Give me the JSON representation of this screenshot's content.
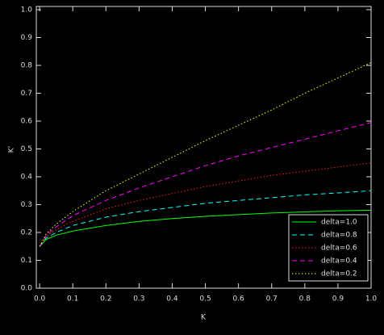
{
  "chart_data": {
    "type": "line",
    "x_label": "K",
    "y_label": "K'",
    "x": [
      0,
      0.02,
      0.05,
      0.1,
      0.2,
      0.3,
      0.4,
      0.5,
      0.6,
      0.7,
      0.8,
      0.9,
      1.0
    ],
    "series": [
      {
        "name": "delta=1.0",
        "color": "#00ff00",
        "dash": "solid",
        "values": [
          0.15,
          0.175,
          0.19,
          0.205,
          0.225,
          0.24,
          0.25,
          0.258,
          0.264,
          0.27,
          0.274,
          0.278,
          0.28
        ]
      },
      {
        "name": "delta=0.8",
        "color": "#00ffff",
        "dash": "dashed",
        "values": [
          0.15,
          0.18,
          0.2,
          0.225,
          0.255,
          0.275,
          0.29,
          0.305,
          0.315,
          0.325,
          0.335,
          0.342,
          0.35
        ]
      },
      {
        "name": "delta=0.6",
        "color": "#ff2020",
        "dash": "dotted",
        "values": [
          0.15,
          0.185,
          0.21,
          0.24,
          0.285,
          0.315,
          0.34,
          0.365,
          0.385,
          0.405,
          0.42,
          0.435,
          0.45
        ]
      },
      {
        "name": "delta=0.4",
        "color": "#ff00ff",
        "dash": "dashed",
        "values": [
          0.15,
          0.19,
          0.22,
          0.26,
          0.315,
          0.36,
          0.4,
          0.44,
          0.475,
          0.505,
          0.535,
          0.565,
          0.595
        ]
      },
      {
        "name": "delta=0.2",
        "color": "#ffff00",
        "dash": "dotted",
        "values": [
          0.15,
          0.195,
          0.23,
          0.275,
          0.35,
          0.41,
          0.47,
          0.53,
          0.585,
          0.64,
          0.7,
          0.755,
          0.81
        ]
      }
    ],
    "xlim": [
      -0.01,
      1.0
    ],
    "ylim": [
      0,
      1.0
    ],
    "xticks": [
      {
        "value": 0,
        "label": "0.0"
      },
      0.1,
      0.2,
      0.3,
      0.4,
      0.5,
      0.6,
      0.7,
      0.8,
      0.9,
      {
        "value": 1.0,
        "label": "1.0"
      }
    ],
    "yticks": [
      {
        "value": 0,
        "label": "0.0"
      },
      0.1,
      0.2,
      0.3,
      0.4,
      0.5,
      0.6,
      0.7,
      0.8,
      0.9,
      {
        "value": 1.0,
        "label": "1.0"
      }
    ],
    "legend": "lower right"
  }
}
